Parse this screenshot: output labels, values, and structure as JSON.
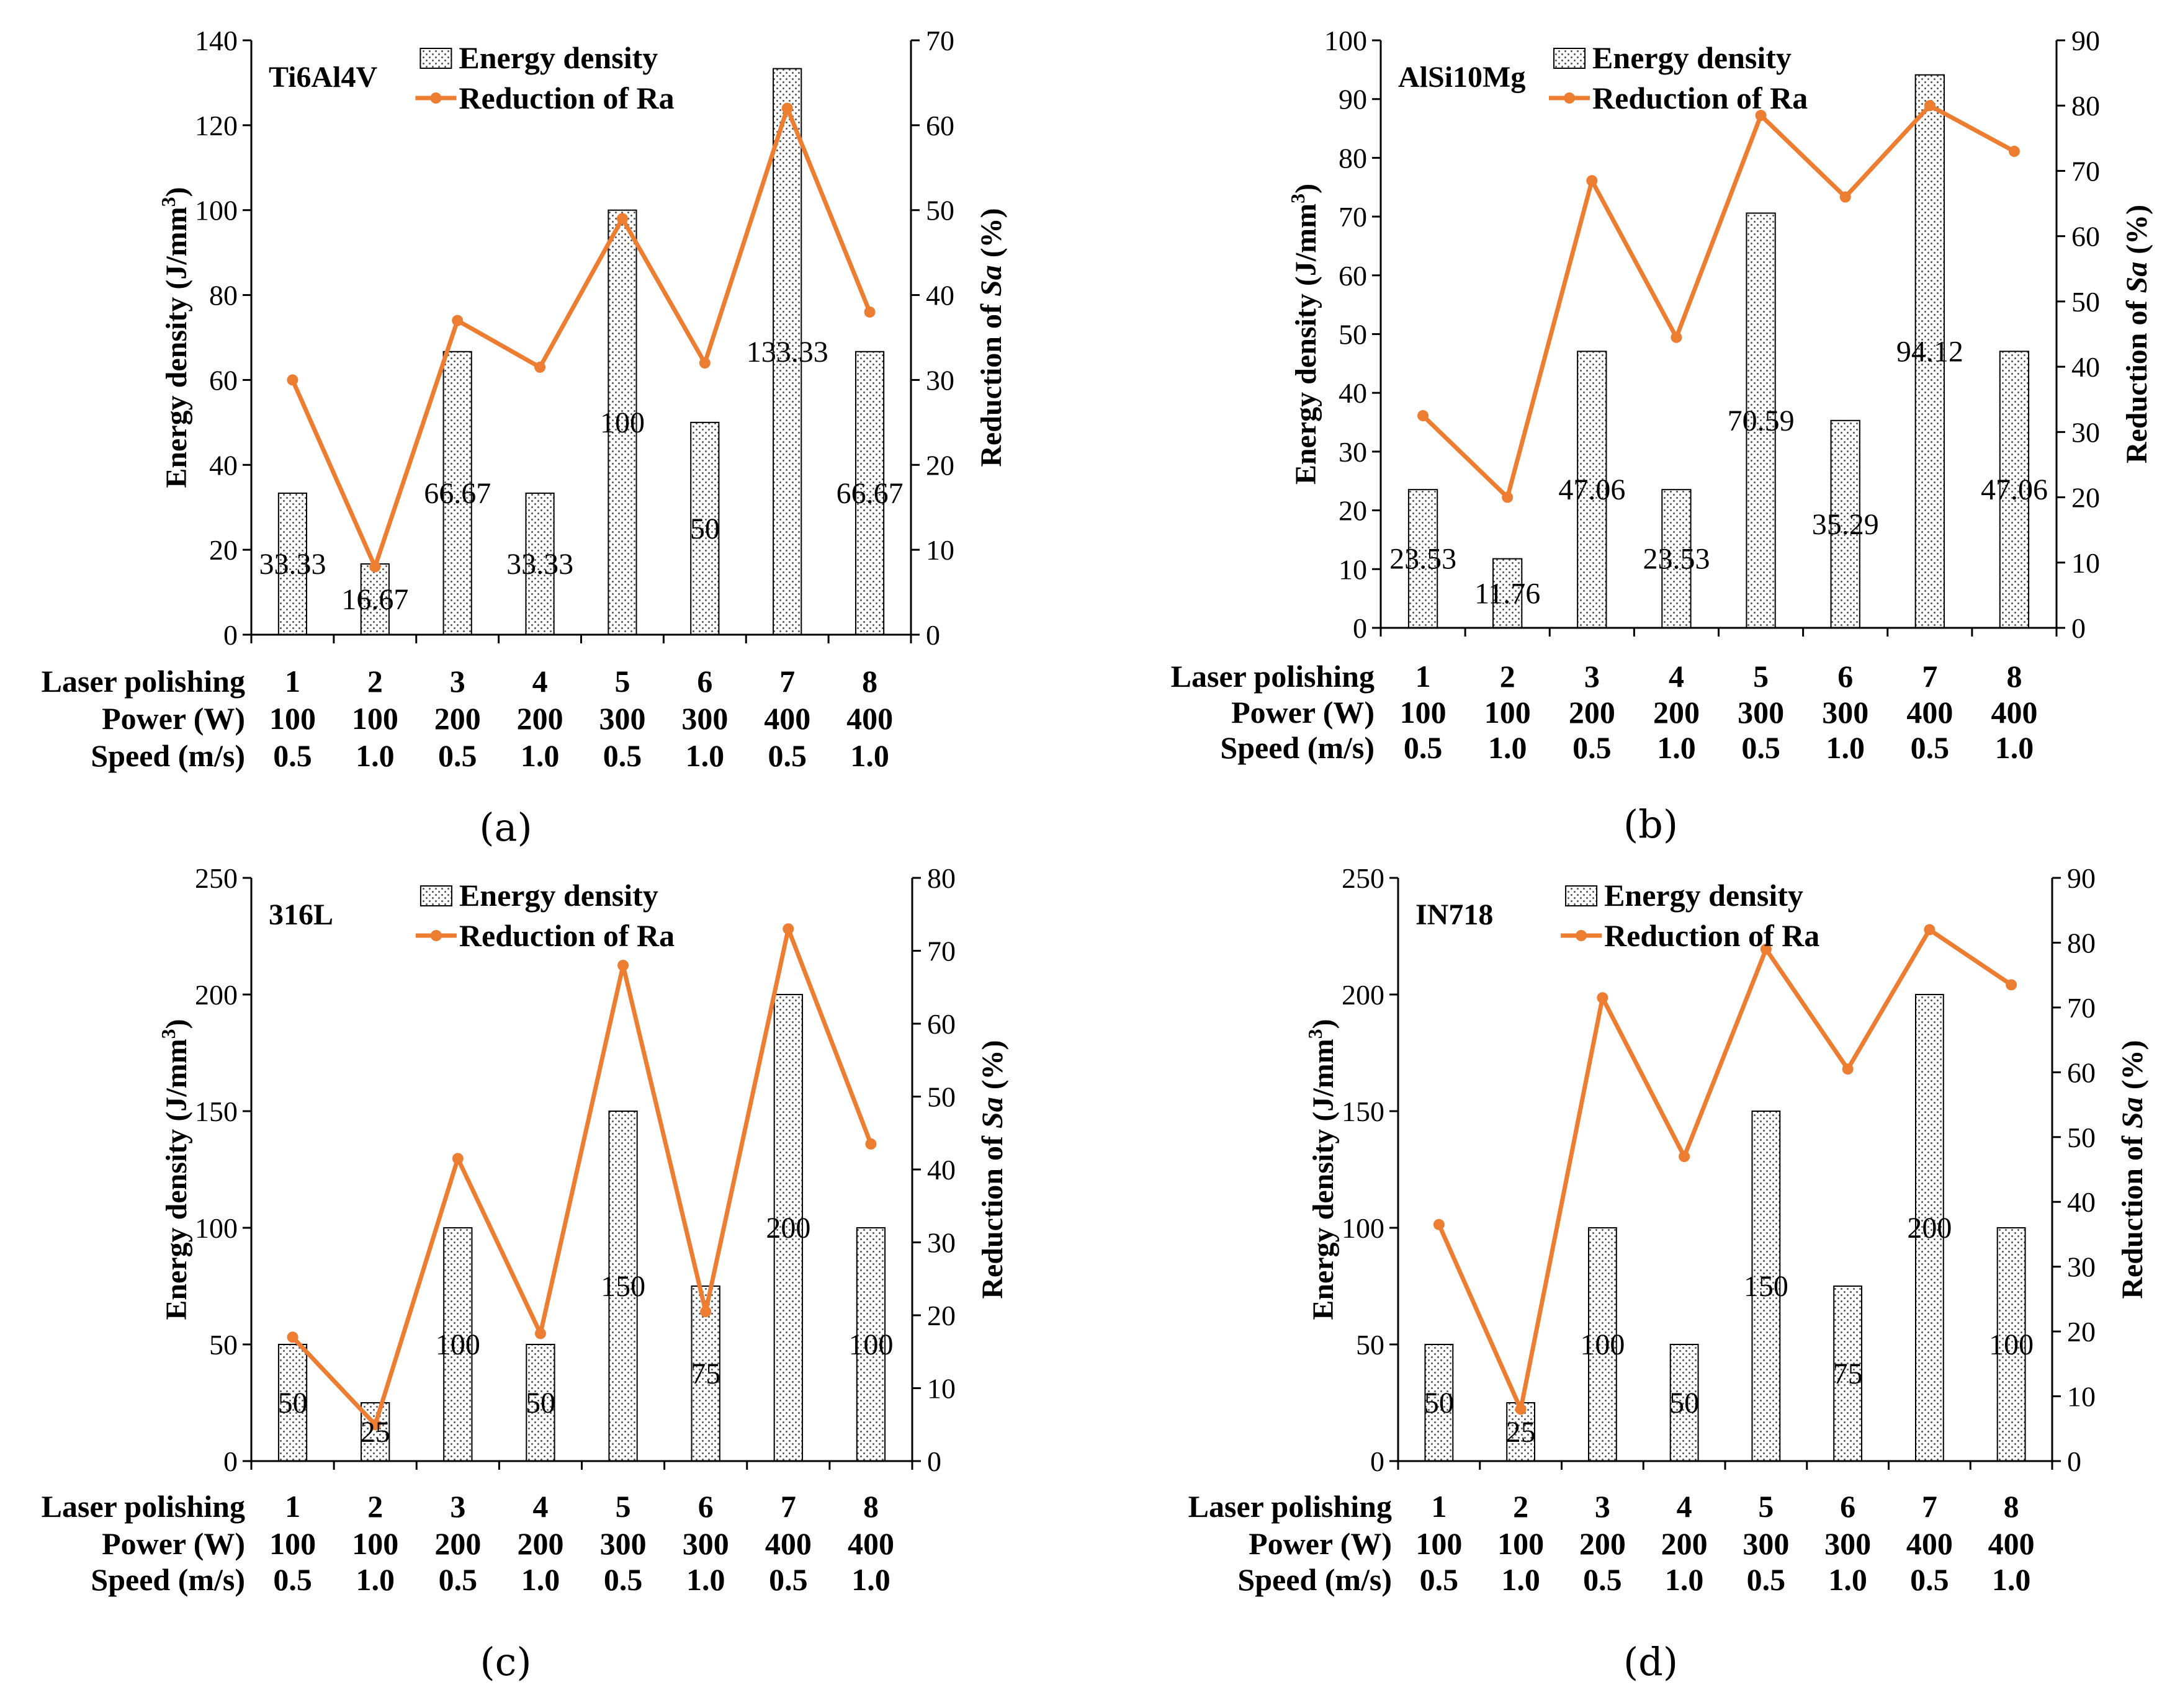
{
  "colors": {
    "bar_stroke": "#000000",
    "bar_dots": "#555555",
    "line": "#ED7D31",
    "axis": "#000000"
  },
  "legend_labels": {
    "bars": "Energy density",
    "line": "Reduction of Ra"
  },
  "row_labels": {
    "laser": "Laser polishing",
    "power": "Power (W)",
    "speed": "Speed (m/s)"
  },
  "left_axis_label": {
    "main": "Energy density (J/mm",
    "sup": "3",
    "close": ")"
  },
  "right_axis_label": {
    "pre": "Reduction of ",
    "italic": "Sa",
    "post": " (%)"
  },
  "laser_polishing": [
    "1",
    "2",
    "3",
    "4",
    "5",
    "6",
    "7",
    "8"
  ],
  "power_w": [
    "100",
    "100",
    "200",
    "200",
    "300",
    "300",
    "400",
    "400"
  ],
  "speed_ms": [
    "0.5",
    "1.0",
    "0.5",
    "1.0",
    "0.5",
    "1.0",
    "0.5",
    "1.0"
  ],
  "chart_data": [
    {
      "type": "bar+line",
      "panel": "(a)",
      "title": "Ti6Al4V",
      "categories": [
        "1",
        "2",
        "3",
        "4",
        "5",
        "6",
        "7",
        "8"
      ],
      "series": [
        {
          "name": "Energy density",
          "axis": "left",
          "values": [
            33.33,
            16.67,
            66.67,
            33.33,
            100,
            50,
            133.33,
            66.67
          ],
          "labels": [
            "33.33",
            "16.67",
            "66.67",
            "33.33",
            "100",
            "50",
            "133.33",
            "66.67"
          ]
        },
        {
          "name": "Reduction of Ra",
          "axis": "right",
          "values": [
            30,
            8,
            37,
            31.5,
            49,
            32,
            62,
            38
          ]
        }
      ],
      "left_axis": {
        "min": 0,
        "max": 140,
        "ticks": [
          "0",
          "20",
          "40",
          "60",
          "80",
          "100",
          "120",
          "140"
        ]
      },
      "right_axis": {
        "min": 0,
        "max": 70,
        "ticks": [
          "0",
          "10",
          "20",
          "30",
          "40",
          "50",
          "60",
          "70"
        ]
      }
    },
    {
      "type": "bar+line",
      "panel": "(b)",
      "title": "AlSi10Mg",
      "categories": [
        "1",
        "2",
        "3",
        "4",
        "5",
        "6",
        "7",
        "8"
      ],
      "series": [
        {
          "name": "Energy density",
          "axis": "left",
          "values": [
            23.53,
            11.76,
            47.06,
            23.53,
            70.59,
            35.29,
            94.12,
            47.06
          ],
          "labels": [
            "23.53",
            "11.76",
            "47.06",
            "23.53",
            "70.59",
            "35.29",
            "94.12",
            "47.06"
          ]
        },
        {
          "name": "Reduction of Ra",
          "axis": "right",
          "values": [
            32.5,
            20,
            68.5,
            44.5,
            78.5,
            66,
            80,
            73
          ]
        }
      ],
      "left_axis": {
        "min": 0,
        "max": 100,
        "ticks": [
          "0",
          "10",
          "20",
          "30",
          "40",
          "50",
          "60",
          "70",
          "80",
          "90",
          "100"
        ]
      },
      "right_axis": {
        "min": 0,
        "max": 90,
        "ticks": [
          "0",
          "10",
          "20",
          "30",
          "40",
          "50",
          "60",
          "70",
          "80",
          "90"
        ]
      }
    },
    {
      "type": "bar+line",
      "panel": "(c)",
      "title": "316L",
      "categories": [
        "1",
        "2",
        "3",
        "4",
        "5",
        "6",
        "7",
        "8"
      ],
      "series": [
        {
          "name": "Energy density",
          "axis": "left",
          "values": [
            50,
            25,
            100,
            50,
            150,
            75,
            200,
            100
          ],
          "labels": [
            "50",
            "25",
            "100",
            "50",
            "150",
            "75",
            "200",
            "100"
          ]
        },
        {
          "name": "Reduction of Ra",
          "axis": "right",
          "values": [
            17,
            5,
            41.5,
            17.5,
            68,
            20.5,
            73,
            43.5
          ]
        }
      ],
      "left_axis": {
        "min": 0,
        "max": 250,
        "ticks": [
          "0",
          "50",
          "100",
          "150",
          "200",
          "250"
        ]
      },
      "right_axis": {
        "min": 0,
        "max": 80,
        "ticks": [
          "0",
          "10",
          "20",
          "30",
          "40",
          "50",
          "60",
          "70",
          "80"
        ]
      }
    },
    {
      "type": "bar+line",
      "panel": "(d)",
      "title": "IN718",
      "categories": [
        "1",
        "2",
        "3",
        "4",
        "5",
        "6",
        "7",
        "8"
      ],
      "series": [
        {
          "name": "Energy density",
          "axis": "left",
          "values": [
            50,
            25,
            100,
            50,
            150,
            75,
            200,
            100
          ],
          "labels": [
            "50",
            "25",
            "100",
            "50",
            "150",
            "75",
            "200",
            "100"
          ]
        },
        {
          "name": "Reduction of Ra",
          "axis": "right",
          "values": [
            36.5,
            8,
            71.5,
            47,
            79,
            60.5,
            82,
            73.5
          ]
        }
      ],
      "left_axis": {
        "min": 0,
        "max": 250,
        "ticks": [
          "0",
          "50",
          "100",
          "150",
          "200",
          "250"
        ]
      },
      "right_axis": {
        "min": 0,
        "max": 90,
        "ticks": [
          "0",
          "10",
          "20",
          "30",
          "40",
          "50",
          "60",
          "70",
          "80",
          "90"
        ]
      }
    }
  ]
}
